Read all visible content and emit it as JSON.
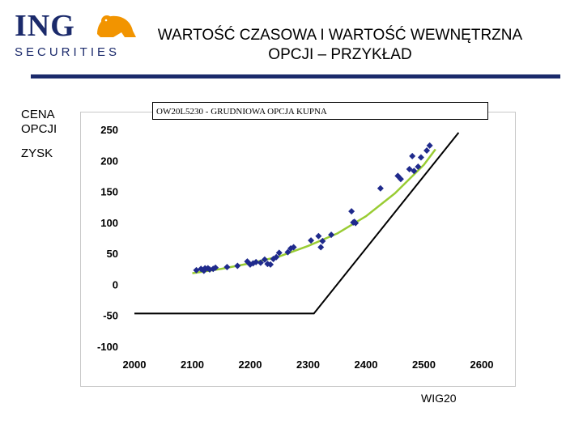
{
  "logo": {
    "brand": "ING",
    "division": "SECURITIES"
  },
  "title": {
    "line1": "WARTOŚĆ CZASOWA I WARTOŚĆ WEWNĘTRZNA",
    "line2": "OPCJI – PRZYKŁAD"
  },
  "side_labels": {
    "cena": "CENA OPCJI",
    "zysk": "ZYSK"
  },
  "colors": {
    "brand": "#1b2a6b",
    "points": "#1f2a8c",
    "trend": "#99cc33",
    "payoff": "#000000"
  },
  "chart_data": {
    "type": "scatter",
    "title": "OW20L5230 - GRUDNIOWA OPCJA KUPNA",
    "xlabel": "WIG20",
    "ylabel": "",
    "xlim": [
      2000,
      2600
    ],
    "ylim": [
      -100,
      250
    ],
    "xticks": [
      "2000",
      "2100",
      "2200",
      "2300",
      "2400",
      "2500",
      "2600"
    ],
    "yticks": [
      "250",
      "200",
      "150",
      "100",
      "50",
      "0",
      "-50",
      "-100"
    ],
    "grid": false,
    "series": [
      {
        "kind": "points",
        "x": [
          2107,
          2115,
          2120,
          2122,
          2127,
          2130,
          2136,
          2140,
          2160,
          2178,
          2195,
          2200,
          2205,
          2210,
          2218,
          2225,
          2230,
          2235,
          2240,
          2245,
          2250,
          2265,
          2270,
          2275,
          2305,
          2318,
          2322,
          2325,
          2340,
          2375,
          2378,
          2380,
          2382,
          2425,
          2455,
          2460,
          2475,
          2480,
          2483,
          2490,
          2495,
          2505,
          2510
        ],
        "y": [
          23,
          25,
          22,
          26,
          26,
          24,
          25,
          27,
          28,
          30,
          37,
          32,
          34,
          36,
          35,
          40,
          33,
          32,
          41,
          44,
          51,
          52,
          58,
          60,
          71,
          78,
          60,
          70,
          80,
          118,
          100,
          101,
          99,
          155,
          175,
          170,
          186,
          207,
          183,
          190,
          205,
          216,
          224
        ]
      },
      {
        "kind": "trend",
        "x": [
          2100,
          2150,
          2200,
          2250,
          2300,
          2350,
          2400,
          2450,
          2500,
          2520
        ],
        "y": [
          18,
          25,
          34,
          45,
          62,
          82,
          110,
          147,
          193,
          218
        ]
      },
      {
        "kind": "payoff",
        "x": [
          2000,
          2310,
          2560
        ],
        "y": [
          -47,
          -47,
          245
        ]
      }
    ]
  }
}
